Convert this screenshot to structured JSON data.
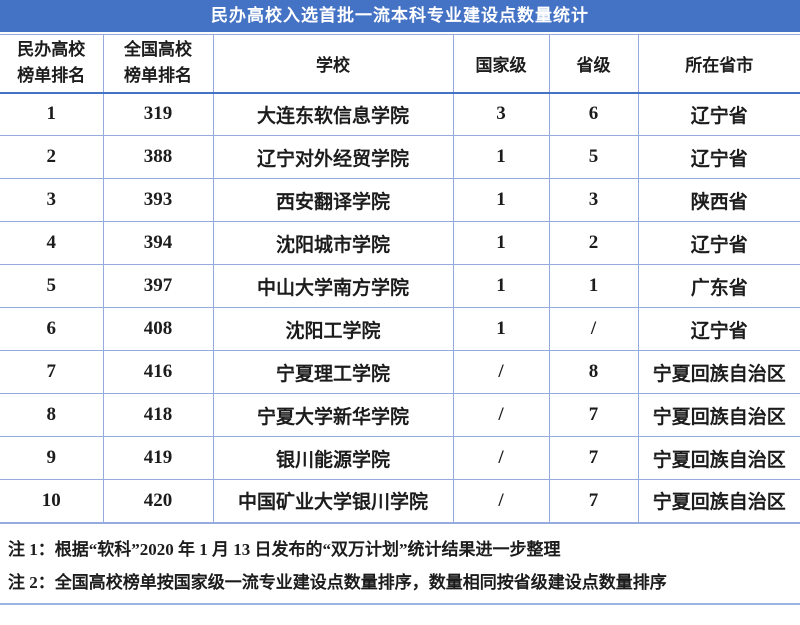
{
  "title": "民办高校入选首批一流本科专业建设点数量统计",
  "colors": {
    "title_bg": "#4472C4",
    "title_text": "#FFFFFF",
    "grid_line": "#95ABDE",
    "header_rule": "#4472C4",
    "text": "#1C1C1C",
    "background": "#FFFFFF"
  },
  "header_display": [
    {
      "line1": "民办高校",
      "line2": "榜单排名"
    },
    {
      "line1": "全国高校",
      "line2": "榜单排名"
    },
    {
      "line1": "学校"
    },
    {
      "line1": "国家级"
    },
    {
      "line1": "省级"
    },
    {
      "line1": "所在省市"
    }
  ],
  "chart_data": {
    "type": "table",
    "title": "民办高校入选首批一流本科专业建设点数量统计",
    "columns": [
      "民办高校榜单排名",
      "全国高校榜单排名",
      "学校",
      "国家级",
      "省级",
      "所在省市"
    ],
    "rows": [
      [
        "1",
        "319",
        "大连东软信息学院",
        "3",
        "6",
        "辽宁省"
      ],
      [
        "2",
        "388",
        "辽宁对外经贸学院",
        "1",
        "5",
        "辽宁省"
      ],
      [
        "3",
        "393",
        "西安翻译学院",
        "1",
        "3",
        "陕西省"
      ],
      [
        "4",
        "394",
        "沈阳城市学院",
        "1",
        "2",
        "辽宁省"
      ],
      [
        "5",
        "397",
        "中山大学南方学院",
        "1",
        "1",
        "广东省"
      ],
      [
        "6",
        "408",
        "沈阳工学院",
        "1",
        "/",
        "辽宁省"
      ],
      [
        "7",
        "416",
        "宁夏理工学院",
        "/",
        "8",
        "宁夏回族自治区"
      ],
      [
        "8",
        "418",
        "宁夏大学新华学院",
        "/",
        "7",
        "宁夏回族自治区"
      ],
      [
        "9",
        "419",
        "银川能源学院",
        "/",
        "7",
        "宁夏回族自治区"
      ],
      [
        "10",
        "420",
        "中国矿业大学银川学院",
        "/",
        "7",
        "宁夏回族自治区"
      ]
    ],
    "notes": [
      "注 1：根据“软科”2020 年 1 月 13 日发布的“双万计划”统计结果进一步整理",
      "注 2：全国高校榜单按国家级一流专业建设点数量排序，数量相同按省级建设点数量排序"
    ]
  }
}
